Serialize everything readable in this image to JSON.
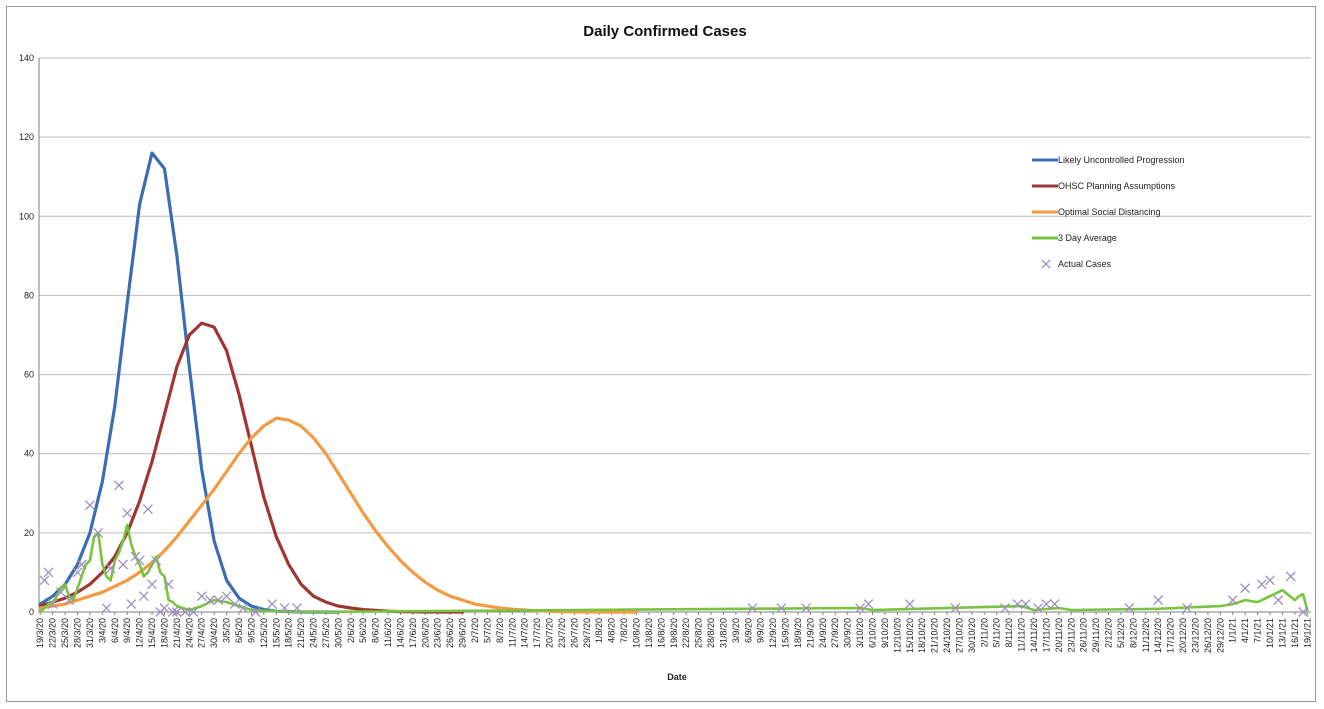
{
  "chart_data": {
    "type": "line",
    "title": "Daily Confirmed Cases",
    "xlabel": "Date",
    "ylabel": "",
    "ylim": [
      0,
      140
    ],
    "yticks": [
      0,
      20,
      40,
      60,
      80,
      100,
      120,
      140
    ],
    "grid": true,
    "legend_position": "right",
    "x_ticks": [
      "19/3/20",
      "22/3/20",
      "25/3/20",
      "28/3/20",
      "31/3/20",
      "3/4/20",
      "6/4/20",
      "9/4/20",
      "12/4/20",
      "15/4/20",
      "18/4/20",
      "21/4/20",
      "24/4/20",
      "27/4/20",
      "30/4/20",
      "3/5/20",
      "6/5/20",
      "9/5/20",
      "12/5/20",
      "15/5/20",
      "18/5/20",
      "21/5/20",
      "24/5/20",
      "27/5/20",
      "30/5/20",
      "2/6/20",
      "5/6/20",
      "8/6/20",
      "11/6/20",
      "14/6/20",
      "17/6/20",
      "20/6/20",
      "23/6/20",
      "26/6/20",
      "29/6/20",
      "2/7/20",
      "5/7/20",
      "8/7/20",
      "11/7/20",
      "14/7/20",
      "17/7/20",
      "20/7/20",
      "23/7/20",
      "26/7/20",
      "29/7/20",
      "1/8/20",
      "4/8/20",
      "7/8/20",
      "10/8/20",
      "13/8/20",
      "16/8/20",
      "19/8/20",
      "22/8/20",
      "25/8/20",
      "28/8/20",
      "31/8/20",
      "3/9/20",
      "6/9/20",
      "9/9/20",
      "12/9/20",
      "15/9/20",
      "18/9/20",
      "21/9/20",
      "24/9/20",
      "27/9/20",
      "30/9/20",
      "3/10/20",
      "6/10/20",
      "9/10/20",
      "12/10/20",
      "15/10/20",
      "18/10/20",
      "21/10/20",
      "24/10/20",
      "27/10/20",
      "30/10/20",
      "2/11/20",
      "5/11/20",
      "8/11/20",
      "11/11/20",
      "14/11/20",
      "17/11/20",
      "20/11/20",
      "23/11/20",
      "26/11/20",
      "29/11/20",
      "2/12/20",
      "5/12/20",
      "8/12/20",
      "11/12/20",
      "14/12/20",
      "17/12/20",
      "20/12/20",
      "23/12/20",
      "26/12/20",
      "29/12/20",
      "1/1/21",
      "4/1/21",
      "7/1/21",
      "10/1/21",
      "13/1/21",
      "16/1/21",
      "19/1/21"
    ],
    "series": [
      {
        "name": "Likely Uncontrolled Progression",
        "color": "#3c6db0",
        "x": [
          "19/3/20",
          "22/3/20",
          "25/3/20",
          "28/3/20",
          "31/3/20",
          "3/4/20",
          "6/4/20",
          "9/4/20",
          "12/4/20",
          "15/4/20",
          "18/4/20",
          "21/4/20",
          "24/4/20",
          "27/4/20",
          "30/4/20",
          "3/5/20",
          "6/5/20",
          "9/5/20",
          "12/5/20",
          "15/5/20",
          "18/5/20",
          "21/5/20",
          "24/5/20",
          "27/5/20",
          "30/5/20"
        ],
        "y": [
          2,
          4,
          7,
          12,
          20,
          33,
          52,
          78,
          103,
          116,
          112,
          90,
          62,
          36,
          18,
          8,
          3.5,
          1.5,
          0.6,
          0.2,
          0.1,
          0,
          0,
          0,
          0
        ]
      },
      {
        "name": "OHSC Planning Assumptions",
        "color": "#9e3633",
        "x": [
          "19/3/20",
          "22/3/20",
          "25/3/20",
          "28/3/20",
          "31/3/20",
          "3/4/20",
          "6/4/20",
          "9/4/20",
          "12/4/20",
          "15/4/20",
          "18/4/20",
          "21/4/20",
          "24/4/20",
          "27/4/20",
          "30/4/20",
          "3/5/20",
          "6/5/20",
          "9/5/20",
          "12/5/20",
          "15/5/20",
          "18/5/20",
          "21/5/20",
          "24/5/20",
          "27/5/20",
          "30/5/20",
          "2/6/20",
          "5/6/20",
          "8/6/20",
          "11/6/20",
          "14/6/20",
          "17/6/20",
          "20/6/20",
          "23/6/20",
          "26/6/20",
          "29/6/20"
        ],
        "y": [
          1.5,
          2.5,
          3.5,
          5,
          7,
          10,
          14,
          20,
          28,
          38,
          50,
          62,
          70,
          73,
          72,
          66,
          55,
          42,
          29,
          19,
          12,
          7,
          4,
          2.5,
          1.5,
          1,
          0.6,
          0.4,
          0.2,
          0.1,
          0.05,
          0,
          0,
          0,
          0
        ]
      },
      {
        "name": "Optimal Social Distancing",
        "color": "#f39a44",
        "x": [
          "19/3/20",
          "22/3/20",
          "25/3/20",
          "28/3/20",
          "31/3/20",
          "3/4/20",
          "6/4/20",
          "9/4/20",
          "12/4/20",
          "15/4/20",
          "18/4/20",
          "21/4/20",
          "24/4/20",
          "27/4/20",
          "30/4/20",
          "3/5/20",
          "6/5/20",
          "9/5/20",
          "12/5/20",
          "15/5/20",
          "18/5/20",
          "21/5/20",
          "24/5/20",
          "27/5/20",
          "30/5/20",
          "2/6/20",
          "5/6/20",
          "8/6/20",
          "11/6/20",
          "14/6/20",
          "17/6/20",
          "20/6/20",
          "23/6/20",
          "26/6/20",
          "29/6/20",
          "2/7/20",
          "5/7/20",
          "8/7/20",
          "11/7/20",
          "14/7/20",
          "17/7/20",
          "20/7/20",
          "23/7/20",
          "26/7/20",
          "29/7/20",
          "1/8/20",
          "4/8/20",
          "7/8/20",
          "10/8/20"
        ],
        "y": [
          1,
          1.5,
          2,
          3,
          4,
          5,
          6.5,
          8,
          10,
          12.5,
          15.5,
          19,
          23,
          27,
          31,
          35.5,
          40,
          44,
          47,
          49,
          48.5,
          47,
          44,
          40,
          35,
          30,
          25,
          20.5,
          16.5,
          13,
          10,
          7.5,
          5.5,
          4,
          3,
          2,
          1.5,
          1,
          0.7,
          0.5,
          0.3,
          0.2,
          0.1,
          0.05,
          0,
          0,
          0,
          0,
          0
        ]
      },
      {
        "name": "3 Day Average",
        "color": "#79c341",
        "x": [
          "19/3/20",
          "20/3/20",
          "21/3/20",
          "22/3/20",
          "23/3/20",
          "24/3/20",
          "25/3/20",
          "26/3/20",
          "27/3/20",
          "28/3/20",
          "29/3/20",
          "30/3/20",
          "31/3/20",
          "1/4/20",
          "2/4/20",
          "3/4/20",
          "4/4/20",
          "5/4/20",
          "6/4/20",
          "7/4/20",
          "8/4/20",
          "9/4/20",
          "10/4/20",
          "11/4/20",
          "12/4/20",
          "13/4/20",
          "14/4/20",
          "15/4/20",
          "16/4/20",
          "17/4/20",
          "18/4/20",
          "19/4/20",
          "20/4/20",
          "21/4/20",
          "24/4/20",
          "27/4/20",
          "30/4/20",
          "3/5/20",
          "6/5/20",
          "9/5/20",
          "12/5/20",
          "15/5/20",
          "18/5/20",
          "21/5/20",
          "3/10/20",
          "6/10/20",
          "11/11/20",
          "14/11/20",
          "20/11/20",
          "23/11/20",
          "14/12/20",
          "29/12/20",
          "1/1/21",
          "4/1/21",
          "7/1/21",
          "10/1/21",
          "13/1/21",
          "16/1/21",
          "17/1/21",
          "18/1/21",
          "19/1/21"
        ],
        "y": [
          0,
          1,
          2,
          2.5,
          4,
          6,
          7,
          4,
          3,
          6,
          9,
          12,
          13,
          19,
          20,
          12,
          9,
          8,
          13,
          15,
          18,
          22,
          17,
          14,
          12,
          9,
          10,
          12,
          14,
          10,
          9,
          3,
          2.5,
          1.5,
          0.5,
          1.5,
          3,
          2.5,
          1.5,
          0.5,
          0.3,
          0.2,
          0.1,
          0,
          1,
          0.5,
          1.5,
          0.5,
          1,
          0.5,
          0.8,
          1.5,
          2,
          3,
          2.5,
          4,
          5.5,
          3,
          4,
          4.5,
          0.5
        ]
      },
      {
        "name": "Actual Cases",
        "color": "#9d8fbf",
        "marker": "x",
        "x": [
          "20/3/20",
          "21/3/20",
          "22/3/20",
          "24/3/20",
          "26/3/20",
          "28/3/20",
          "29/3/20",
          "31/3/20",
          "2/4/20",
          "4/4/20",
          "5/4/20",
          "7/4/20",
          "8/4/20",
          "9/4/20",
          "10/4/20",
          "11/4/20",
          "12/4/20",
          "13/4/20",
          "14/4/20",
          "15/4/20",
          "16/4/20",
          "17/4/20",
          "18/4/20",
          "19/4/20",
          "20/4/20",
          "21/4/20",
          "23/4/20",
          "25/4/20",
          "27/4/20",
          "29/4/20",
          "1/5/20",
          "3/5/20",
          "5/5/20",
          "7/5/20",
          "10/5/20",
          "14/5/20",
          "17/5/20",
          "20/5/20",
          "7/9/20",
          "14/9/20",
          "20/9/20",
          "3/10/20",
          "5/10/20",
          "15/10/20",
          "26/10/20",
          "7/11/20",
          "10/11/20",
          "12/11/20",
          "15/11/20",
          "17/11/20",
          "19/11/20",
          "7/12/20",
          "14/12/20",
          "21/12/20",
          "1/1/21",
          "4/1/21",
          "8/1/21",
          "10/1/21",
          "12/1/21",
          "15/1/21",
          "18/1/21"
        ],
        "y": [
          8,
          10,
          2,
          5,
          3,
          10,
          12,
          27,
          20,
          1,
          11,
          32,
          12,
          25,
          2,
          14,
          13,
          4,
          26,
          7,
          13,
          0,
          1,
          7,
          0,
          0,
          0,
          0,
          4,
          3,
          3,
          4,
          2,
          1,
          0,
          2,
          1,
          1,
          1,
          1,
          1,
          1,
          2,
          2,
          1,
          1,
          2,
          2,
          1,
          2,
          2,
          1,
          3,
          1,
          3,
          6,
          7,
          8,
          3,
          9,
          0
        ]
      }
    ]
  }
}
